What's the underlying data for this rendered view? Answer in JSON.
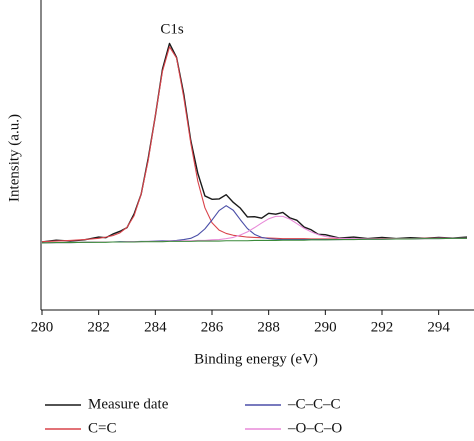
{
  "chart_data": {
    "type": "line",
    "annotation": "C1s",
    "x_label": "Binding energy (eV)",
    "y_label": "Intensity (a.u.)",
    "xlim": [
      280,
      295
    ],
    "xticks": [
      280,
      282,
      284,
      286,
      288,
      290,
      292,
      294
    ],
    "ylim": [
      0,
      100
    ],
    "x": [
      280,
      280.5,
      281,
      281.5,
      282,
      282.25,
      282.5,
      282.75,
      283,
      283.25,
      283.5,
      283.75,
      284,
      284.25,
      284.5,
      284.75,
      285,
      285.25,
      285.5,
      285.75,
      286,
      286.25,
      286.5,
      286.75,
      287,
      287.25,
      287.5,
      287.75,
      288,
      288.25,
      288.5,
      288.75,
      289,
      289.25,
      289.5,
      289.75,
      290,
      290.5,
      291,
      291.5,
      292,
      292.5,
      293,
      293.5,
      294,
      294.5,
      295
    ],
    "series": [
      {
        "name": "Measure date",
        "color": "#1a1a1a",
        "values": [
          22.3,
          22.9,
          22.6,
          23.0,
          23.9,
          23.7,
          24.9,
          25.8,
          27.0,
          31.5,
          38.0,
          49.8,
          63.6,
          78.9,
          87.4,
          82.8,
          71.0,
          55.6,
          44.8,
          37.4,
          36.3,
          36.4,
          37.8,
          35.3,
          33.4,
          30.5,
          30.6,
          30.1,
          31.7,
          31.4,
          32.0,
          30.2,
          29.4,
          27.2,
          26.3,
          24.8,
          24.7,
          23.6,
          23.9,
          23.4,
          23.8,
          23.4,
          23.7,
          23.5,
          23.8,
          23.6,
          23.9
        ]
      },
      {
        "name": "C=C",
        "color": "#d9434a",
        "values": [
          22.4,
          22.6,
          22.8,
          23.1,
          23.5,
          23.9,
          24.4,
          25.3,
          27.1,
          30.9,
          38.0,
          49.1,
          63.7,
          78.2,
          86.3,
          82.6,
          69.9,
          54.8,
          42.2,
          33.5,
          28.6,
          26.2,
          25.1,
          24.5,
          24.2,
          23.9,
          23.8,
          23.7,
          23.6,
          23.5,
          23.4,
          23.4,
          23.4,
          23.4,
          23.3,
          23.3,
          23.3,
          23.3,
          23.3,
          23.3,
          23.4,
          23.4,
          23.4,
          23.5,
          23.5,
          23.6,
          23.6
        ]
      },
      {
        "name": "–C–C–C",
        "color": "#4b4fa8",
        "values": [
          22.0,
          22.1,
          22.1,
          22.2,
          22.3,
          22.3,
          22.3,
          22.4,
          22.4,
          22.4,
          22.5,
          22.5,
          22.6,
          22.7,
          22.7,
          22.8,
          23.1,
          23.5,
          24.6,
          26.6,
          29.5,
          32.6,
          34.2,
          32.7,
          29.6,
          26.7,
          24.8,
          23.8,
          23.4,
          23.2,
          23.1,
          23.1,
          23.1,
          23.1,
          23.1,
          23.1,
          23.1,
          23.1,
          23.2,
          23.2,
          23.2,
          23.3,
          23.3,
          23.4,
          23.4,
          23.5,
          23.5
        ]
      },
      {
        "name": "–O–C–O",
        "color": "#e88ad8",
        "values": [
          22.0,
          22.1,
          22.1,
          22.2,
          22.3,
          22.3,
          22.3,
          22.3,
          22.4,
          22.4,
          22.4,
          22.5,
          22.5,
          22.5,
          22.6,
          22.6,
          22.7,
          22.7,
          22.8,
          22.8,
          23.0,
          23.1,
          23.4,
          23.8,
          24.6,
          25.6,
          27.0,
          28.5,
          29.9,
          30.7,
          30.7,
          29.8,
          28.3,
          26.8,
          25.6,
          24.7,
          24.1,
          23.5,
          23.4,
          23.3,
          23.3,
          23.4,
          23.4,
          23.4,
          23.5,
          23.5,
          23.5
        ]
      },
      {
        "color": "#3a8a3a",
        "values": [
          22.0,
          22.1,
          22.1,
          22.2,
          22.2,
          22.2,
          22.3,
          22.3,
          22.3,
          22.3,
          22.4,
          22.4,
          22.4,
          22.4,
          22.5,
          22.5,
          22.5,
          22.5,
          22.6,
          22.6,
          22.6,
          22.6,
          22.7,
          22.7,
          22.7,
          22.7,
          22.8,
          22.8,
          22.8,
          22.8,
          22.9,
          22.9,
          22.9,
          22.9,
          23.0,
          23.0,
          23.0,
          23.1,
          23.1,
          23.2,
          23.2,
          23.3,
          23.3,
          23.4,
          23.4,
          23.5,
          23.5
        ]
      }
    ]
  }
}
